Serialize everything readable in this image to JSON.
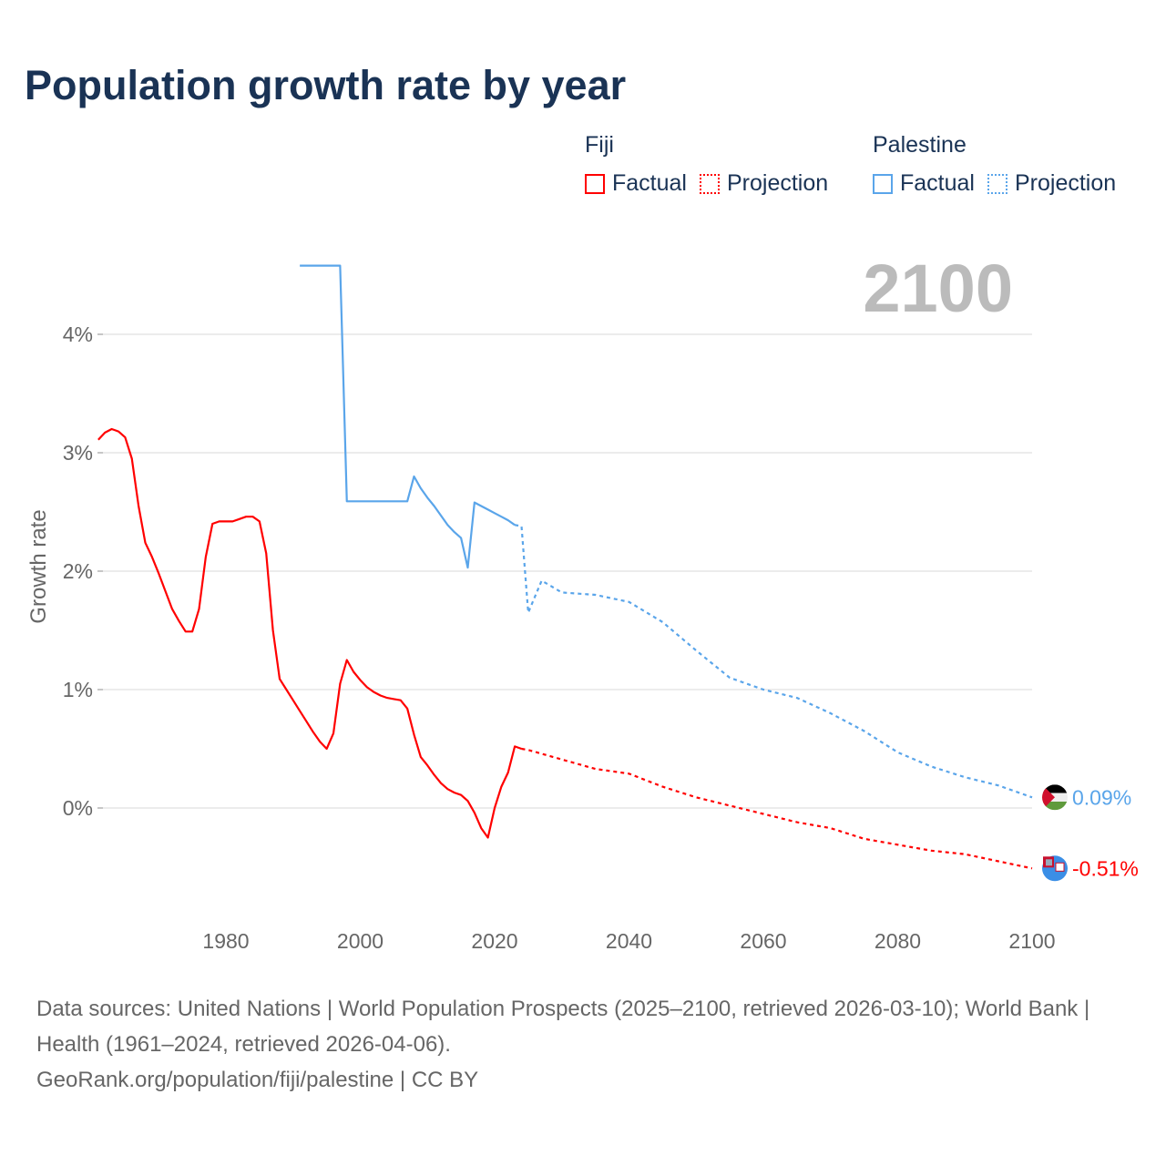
{
  "chart_data": {
    "type": "line",
    "title": "Population growth rate by year",
    "ylabel": "Growth rate",
    "xlabel": "",
    "xlim": [
      1961,
      2100
    ],
    "ylim": [
      -0.9,
      4.6
    ],
    "x_ticks": [
      1980,
      2000,
      2020,
      2040,
      2060,
      2080,
      2100
    ],
    "x_tick_labels": [
      "1980",
      "2000",
      "2020",
      "2040",
      "2060",
      "2080",
      "2100"
    ],
    "y_ticks": [
      0,
      1,
      2,
      3,
      4
    ],
    "y_tick_labels": [
      "0%",
      "1%",
      "2%",
      "3%",
      "4%"
    ],
    "grid": true,
    "year_display": "2100",
    "legend": {
      "placement": "top-right",
      "groups": [
        {
          "name": "Fiji",
          "items": [
            "Factual",
            "Projection"
          ]
        },
        {
          "name": "Palestine",
          "items": [
            "Factual",
            "Projection"
          ]
        }
      ]
    },
    "series": [
      {
        "name": "Fiji",
        "color": "#ff0000",
        "end_label": "-0.51%",
        "factual": {
          "x": [
            1961,
            1962,
            1963,
            1964,
            1965,
            1966,
            1967,
            1968,
            1969,
            1970,
            1971,
            1972,
            1973,
            1974,
            1975,
            1976,
            1977,
            1978,
            1979,
            1980,
            1981,
            1982,
            1983,
            1984,
            1985,
            1986,
            1987,
            1988,
            1989,
            1990,
            1991,
            1992,
            1993,
            1994,
            1995,
            1996,
            1997,
            1998,
            1999,
            2000,
            2001,
            2002,
            2003,
            2004,
            2005,
            2006,
            2007,
            2008,
            2009,
            2010,
            2011,
            2012,
            2013,
            2014,
            2015,
            2016,
            2017,
            2018,
            2019,
            2020,
            2021,
            2022,
            2023,
            2024
          ],
          "y": [
            3.11,
            3.17,
            3.2,
            3.18,
            3.13,
            2.95,
            2.55,
            2.24,
            2.12,
            1.98,
            1.83,
            1.68,
            1.58,
            1.49,
            1.49,
            1.68,
            2.12,
            2.4,
            2.42,
            2.42,
            2.42,
            2.44,
            2.46,
            2.46,
            2.42,
            2.15,
            1.5,
            1.09,
            1.0,
            0.91,
            0.82,
            0.73,
            0.64,
            0.56,
            0.5,
            0.63,
            1.05,
            1.25,
            1.15,
            1.08,
            1.02,
            0.98,
            0.95,
            0.93,
            0.92,
            0.91,
            0.84,
            0.62,
            0.43,
            0.36,
            0.28,
            0.21,
            0.16,
            0.13,
            0.11,
            0.06,
            -0.04,
            -0.17,
            -0.25,
            0.0,
            0.18,
            0.3,
            0.52,
            0.5
          ]
        },
        "projection": {
          "x": [
            2024,
            2025,
            2030,
            2035,
            2040,
            2045,
            2050,
            2055,
            2060,
            2065,
            2070,
            2075,
            2080,
            2085,
            2090,
            2095,
            2100
          ],
          "y": [
            0.5,
            0.49,
            0.41,
            0.33,
            0.29,
            0.18,
            0.09,
            0.02,
            -0.05,
            -0.12,
            -0.17,
            -0.26,
            -0.31,
            -0.36,
            -0.39,
            -0.45,
            -0.51
          ]
        }
      },
      {
        "name": "Palestine",
        "color": "#5aa5ea",
        "end_label": "0.09%",
        "factual": {
          "x": [
            1991,
            1992,
            1993,
            1994,
            1995,
            1996,
            1997,
            1998,
            1999,
            2000,
            2001,
            2002,
            2003,
            2004,
            2005,
            2006,
            2007,
            2008,
            2009,
            2010,
            2011,
            2012,
            2013,
            2014,
            2015,
            2016,
            2017,
            2018,
            2019,
            2020,
            2021,
            2022,
            2023
          ],
          "y": [
            4.58,
            4.58,
            4.58,
            4.58,
            4.58,
            4.58,
            4.58,
            2.59,
            2.59,
            2.59,
            2.59,
            2.59,
            2.59,
            2.59,
            2.59,
            2.59,
            2.59,
            2.8,
            2.7,
            2.62,
            2.55,
            2.47,
            2.39,
            2.33,
            2.28,
            2.03,
            2.58,
            2.55,
            2.52,
            2.49,
            2.46,
            2.43,
            2.39
          ]
        },
        "projection": {
          "x": [
            2023,
            2024,
            2025,
            2027,
            2030,
            2035,
            2040,
            2045,
            2050,
            2055,
            2060,
            2065,
            2070,
            2075,
            2080,
            2085,
            2090,
            2095,
            2100
          ],
          "y": [
            2.39,
            2.38,
            1.65,
            1.92,
            1.82,
            1.8,
            1.74,
            1.57,
            1.33,
            1.1,
            1.0,
            0.93,
            0.8,
            0.65,
            0.47,
            0.35,
            0.26,
            0.19,
            0.09
          ]
        }
      }
    ]
  },
  "footer": {
    "sources": "Data sources: United Nations | World Population Prospects (2025–2100, retrieved 2026-03-10); World Bank | Health (1961–2024, retrieved 2026-04-06).",
    "link": "GeoRank.org/population/fiji/palestine | CC BY"
  }
}
